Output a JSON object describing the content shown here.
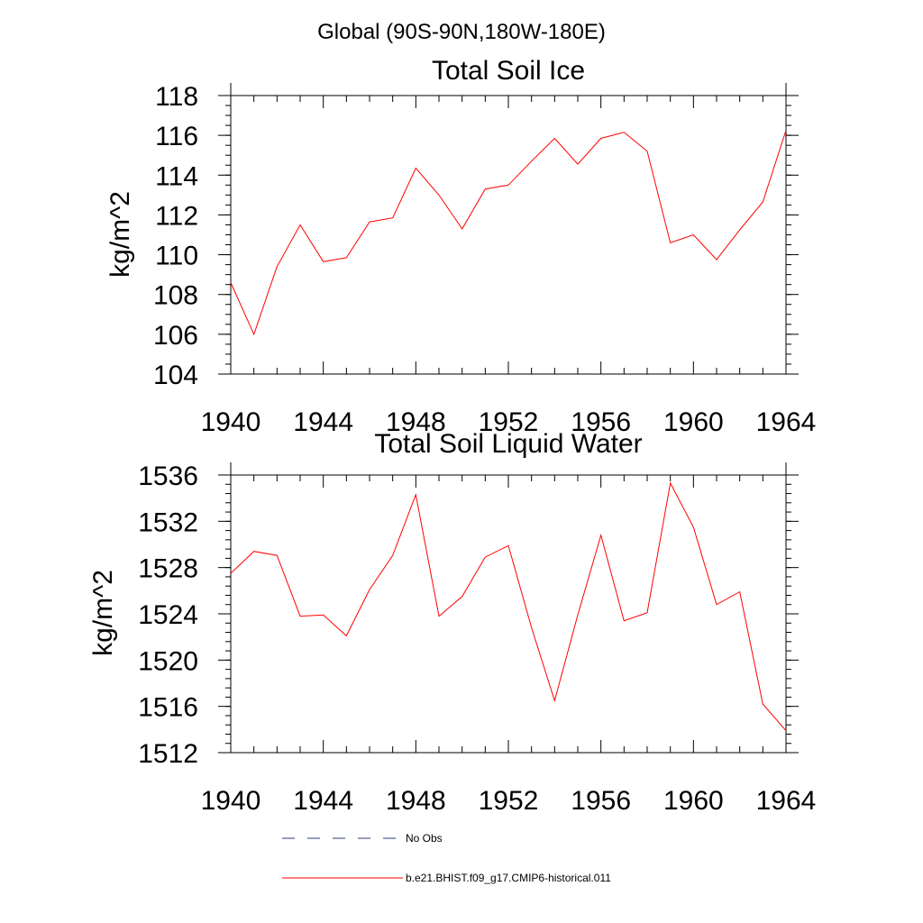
{
  "figure": {
    "main_title": "Global (90S-90N,180W-180E)"
  },
  "colors": {
    "model_line": "#ff0000",
    "obs_line": "#2b3a7a",
    "axis": "#000000"
  },
  "chart_data": [
    {
      "type": "line",
      "title": "Total Soil Ice",
      "xlabel": "",
      "ylabel": "kg/m^2",
      "xlim": [
        1940,
        1964
      ],
      "ylim": [
        104,
        118
      ],
      "x_ticks": [
        1940,
        1944,
        1948,
        1952,
        1956,
        1960,
        1964
      ],
      "y_ticks": [
        104,
        106,
        108,
        110,
        112,
        114,
        116,
        118
      ],
      "grid": false,
      "series": [
        {
          "name": "b.e21.BHIST.f09_g17.CMIP6-historical.011",
          "x": [
            1940,
            1941,
            1942,
            1943,
            1944,
            1945,
            1946,
            1947,
            1948,
            1949,
            1950,
            1951,
            1952,
            1953,
            1954,
            1955,
            1956,
            1957,
            1958,
            1959,
            1960,
            1961,
            1962,
            1963,
            1964
          ],
          "values": [
            108.6,
            106.0,
            109.4,
            111.5,
            109.65,
            109.85,
            111.65,
            111.85,
            114.35,
            113.0,
            111.3,
            113.3,
            113.5,
            114.7,
            115.85,
            114.55,
            115.85,
            116.15,
            115.2,
            110.6,
            111.0,
            109.75,
            111.25,
            112.65,
            116.25
          ]
        }
      ]
    },
    {
      "type": "line",
      "title": "Total Soil Liquid Water",
      "xlabel": "",
      "ylabel": "kg/m^2",
      "xlim": [
        1940,
        1964
      ],
      "ylim": [
        1512,
        1536
      ],
      "x_ticks": [
        1940,
        1944,
        1948,
        1952,
        1956,
        1960,
        1964
      ],
      "y_ticks": [
        1512,
        1516,
        1520,
        1524,
        1528,
        1532,
        1536
      ],
      "grid": false,
      "series": [
        {
          "name": "b.e21.BHIST.f09_g17.CMIP6-historical.011",
          "x": [
            1940,
            1941,
            1942,
            1943,
            1944,
            1945,
            1946,
            1947,
            1948,
            1949,
            1950,
            1951,
            1952,
            1953,
            1954,
            1955,
            1956,
            1957,
            1958,
            1959,
            1960,
            1961,
            1962,
            1963,
            1964
          ],
          "values": [
            1527.5,
            1529.4,
            1529.05,
            1523.8,
            1523.9,
            1522.1,
            1526.1,
            1529.05,
            1534.3,
            1523.8,
            1525.5,
            1528.9,
            1529.9,
            1522.8,
            1516.5,
            1523.9,
            1530.8,
            1523.4,
            1524.1,
            1535.3,
            1531.5,
            1524.8,
            1525.9,
            1516.2,
            1513.9
          ]
        }
      ]
    }
  ],
  "legend": {
    "placement": "bottom",
    "items": [
      {
        "label": "No Obs",
        "style": "dashed",
        "color_key": "obs_line"
      },
      {
        "label": "b.e21.BHIST.f09_g17.CMIP6-historical.011",
        "style": "solid",
        "color_key": "model_line"
      }
    ]
  }
}
